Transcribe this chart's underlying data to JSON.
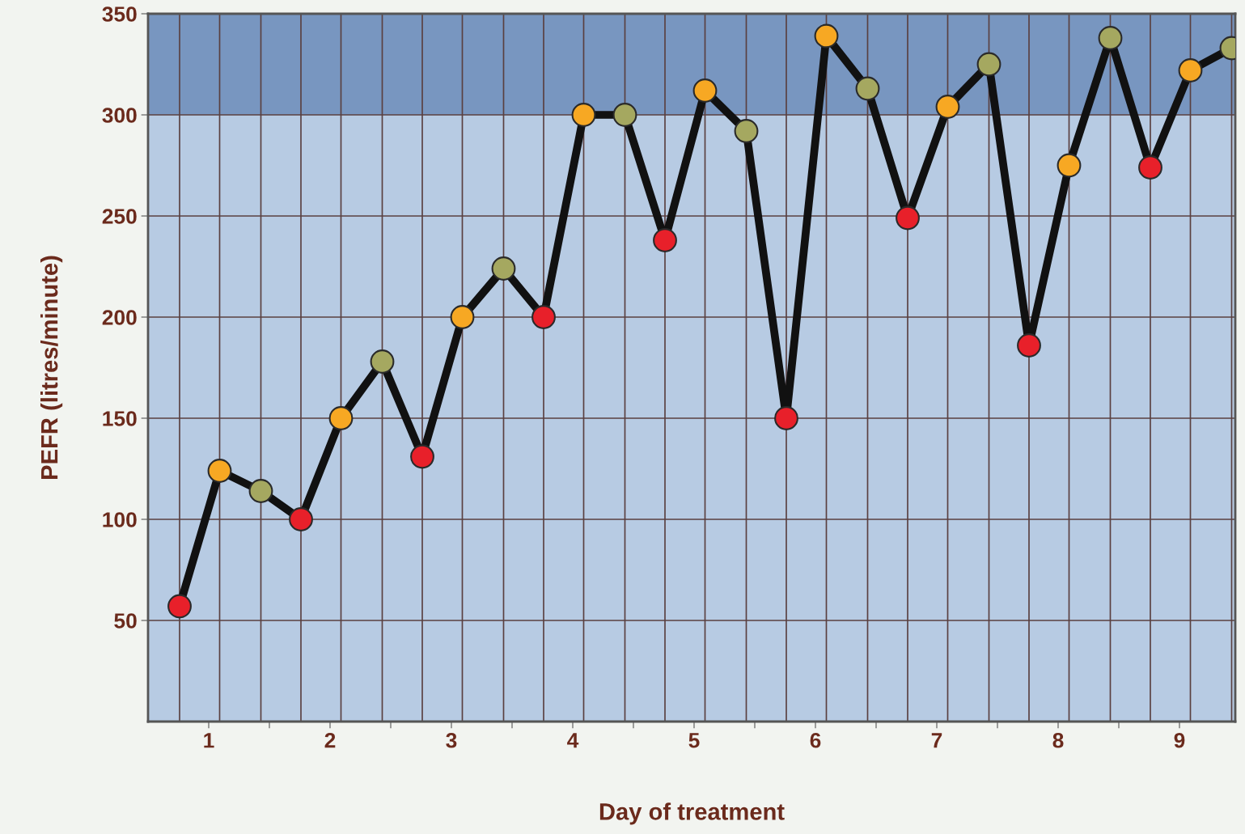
{
  "chart_data": {
    "type": "line",
    "xlabel": "Day of treatment",
    "ylabel": "PEFR (litres/minute)",
    "x": [
      0.76,
      1.09,
      1.43,
      1.76,
      2.09,
      2.43,
      2.76,
      3.09,
      3.43,
      3.76,
      4.09,
      4.43,
      4.76,
      5.09,
      5.43,
      5.76,
      6.09,
      6.43,
      6.76,
      7.09,
      7.43,
      7.76,
      8.09,
      8.43,
      8.76,
      9.09,
      9.43
    ],
    "series": [
      {
        "color": "#111111",
        "values": [
          57,
          124,
          114,
          100,
          150,
          178,
          131,
          200,
          224,
          200,
          300,
          300,
          238,
          312,
          292,
          150,
          339,
          313,
          249,
          304,
          325,
          186,
          275,
          338,
          274,
          322,
          333
        ],
        "colors": [
          "#e8202a",
          "#f7a823",
          "#a5a860",
          "#e8202a",
          "#f7a823",
          "#a5a860",
          "#e8202a",
          "#f7a823",
          "#a5a860",
          "#e8202a",
          "#f7a823",
          "#a5a860",
          "#e8202a",
          "#f7a823",
          "#a5a860",
          "#e8202a",
          "#f7a823",
          "#a5a860",
          "#e8202a",
          "#f7a823",
          "#a5a860",
          "#e8202a",
          "#f7a823",
          "#a5a860",
          "#e8202a",
          "#f7a823",
          "#a5a860"
        ]
      }
    ],
    "xlim": [
      0.5,
      9.46
    ],
    "ylim": [
      0,
      350
    ],
    "xticks": [
      1,
      2,
      3,
      4,
      5,
      6,
      7,
      8,
      9,
      {
        "value": 1.5,
        "label": null
      },
      {
        "value": 2.5,
        "label": null
      },
      {
        "value": 3.5,
        "label": null
      },
      {
        "value": 4.5,
        "label": null
      },
      {
        "value": 5.5,
        "label": null
      },
      {
        "value": 6.5,
        "label": null
      },
      {
        "value": 7.5,
        "label": null
      },
      {
        "value": 8.5,
        "label": null
      }
    ],
    "yticks": [
      50,
      100,
      150,
      200,
      250,
      300,
      350
    ],
    "bands": [
      {
        "axis": "y",
        "from": 300,
        "to": 350,
        "color": "#7896c0"
      }
    ],
    "grid": true,
    "marker": "circle",
    "line_style": "solid"
  }
}
